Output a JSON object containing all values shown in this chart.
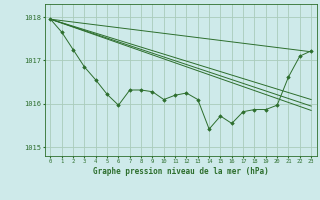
{
  "background_color": "#ceeaea",
  "grid_color": "#aaccbb",
  "line_color": "#2d6e2d",
  "marker_color": "#2d6e2d",
  "xlabel": "Graphe pression niveau de la mer (hPa)",
  "xlabel_color": "#2d6e2d",
  "ylim": [
    1014.8,
    1018.3
  ],
  "xlim": [
    -0.5,
    23.5
  ],
  "yticks": [
    1015,
    1016,
    1017,
    1018
  ],
  "xticks": [
    0,
    1,
    2,
    3,
    4,
    5,
    6,
    7,
    8,
    9,
    10,
    11,
    12,
    13,
    14,
    15,
    16,
    17,
    18,
    19,
    20,
    21,
    22,
    23
  ],
  "straight_lines": [
    {
      "x": [
        0,
        23
      ],
      "y": [
        1017.95,
        1017.2
      ]
    },
    {
      "x": [
        0,
        23
      ],
      "y": [
        1017.95,
        1016.1
      ]
    },
    {
      "x": [
        0,
        23
      ],
      "y": [
        1017.95,
        1015.95
      ]
    },
    {
      "x": [
        0,
        23
      ],
      "y": [
        1017.95,
        1015.85
      ]
    }
  ],
  "jagged_x": [
    0,
    1,
    2,
    3,
    4,
    5,
    6,
    7,
    8,
    9,
    10,
    11,
    12,
    13,
    14,
    15,
    16,
    17,
    18,
    19,
    20,
    21,
    22,
    23
  ],
  "jagged_y": [
    1017.95,
    1017.65,
    1017.25,
    1016.85,
    1016.55,
    1016.22,
    1015.97,
    1016.32,
    1016.32,
    1016.28,
    1016.1,
    1016.2,
    1016.25,
    1016.1,
    1015.42,
    1015.72,
    1015.55,
    1015.82,
    1015.87,
    1015.87,
    1015.97,
    1016.62,
    1017.1,
    1017.22
  ]
}
